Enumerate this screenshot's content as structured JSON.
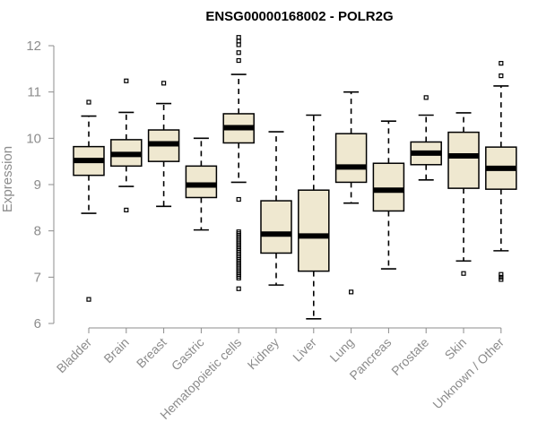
{
  "chart_data": {
    "type": "boxplot",
    "title": "ENSG00000168002 - POLR2G",
    "ylabel": "Expression",
    "xlabel": "",
    "ylim": [
      6,
      12
    ],
    "yticks": [
      6,
      7,
      8,
      9,
      10,
      11,
      12
    ],
    "box_color": "#efe8d0",
    "categories": [
      "Bladder",
      "Brain",
      "Breast",
      "Gastric",
      "Hematopoietic cells",
      "Kidney",
      "Liver",
      "Lung",
      "Pancreas",
      "Prostate",
      "Skin",
      "Unknown / Other"
    ],
    "boxes": [
      {
        "name": "Bladder",
        "whislo": 8.38,
        "q1": 9.2,
        "med": 9.52,
        "q3": 9.82,
        "whishi": 10.48,
        "fliers": [
          10.78,
          6.52
        ]
      },
      {
        "name": "Brain",
        "whislo": 8.96,
        "q1": 9.4,
        "med": 9.65,
        "q3": 9.97,
        "whishi": 10.56,
        "fliers": [
          11.24,
          8.45
        ]
      },
      {
        "name": "Breast",
        "whislo": 8.53,
        "q1": 9.5,
        "med": 9.88,
        "q3": 10.18,
        "whishi": 10.75,
        "fliers": [
          11.19
        ]
      },
      {
        "name": "Gastric",
        "whislo": 8.02,
        "q1": 8.72,
        "med": 8.99,
        "q3": 9.4,
        "whishi": 10.0,
        "fliers": []
      },
      {
        "name": "Hematopoietic cells",
        "whislo": 9.05,
        "q1": 9.9,
        "med": 10.23,
        "q3": 10.53,
        "whishi": 11.38,
        "fliers": [
          12.18,
          12.1,
          12.02,
          11.85,
          11.68,
          8.68,
          7.98,
          7.94,
          7.9,
          7.86,
          7.82,
          7.78,
          7.74,
          7.7,
          7.66,
          7.62,
          7.58,
          7.54,
          7.5,
          7.46,
          7.42,
          7.38,
          7.34,
          7.3,
          7.26,
          7.22,
          7.18,
          7.14,
          7.1,
          7.06,
          7.02,
          6.98,
          6.75
        ]
      },
      {
        "name": "Kidney",
        "whislo": 6.83,
        "q1": 7.52,
        "med": 7.93,
        "q3": 8.65,
        "whishi": 10.14,
        "fliers": []
      },
      {
        "name": "Liver",
        "whislo": 6.1,
        "q1": 7.13,
        "med": 7.89,
        "q3": 8.88,
        "whishi": 10.5,
        "fliers": []
      },
      {
        "name": "Lung",
        "whislo": 8.6,
        "q1": 9.05,
        "med": 9.38,
        "q3": 10.1,
        "whishi": 11.0,
        "fliers": [
          6.68
        ]
      },
      {
        "name": "Pancreas",
        "whislo": 7.18,
        "q1": 8.43,
        "med": 8.88,
        "q3": 9.46,
        "whishi": 10.37,
        "fliers": []
      },
      {
        "name": "Prostate",
        "whislo": 9.1,
        "q1": 9.43,
        "med": 9.68,
        "q3": 9.92,
        "whishi": 10.5,
        "fliers": [
          10.88
        ]
      },
      {
        "name": "Skin",
        "whislo": 7.35,
        "q1": 8.92,
        "med": 9.62,
        "q3": 10.13,
        "whishi": 10.55,
        "fliers": [
          7.08
        ]
      },
      {
        "name": "Unknown / Other",
        "whislo": 7.57,
        "q1": 8.9,
        "med": 9.35,
        "q3": 9.81,
        "whishi": 11.13,
        "fliers": [
          11.62,
          11.35,
          7.06,
          7.0,
          6.95
        ]
      }
    ]
  }
}
